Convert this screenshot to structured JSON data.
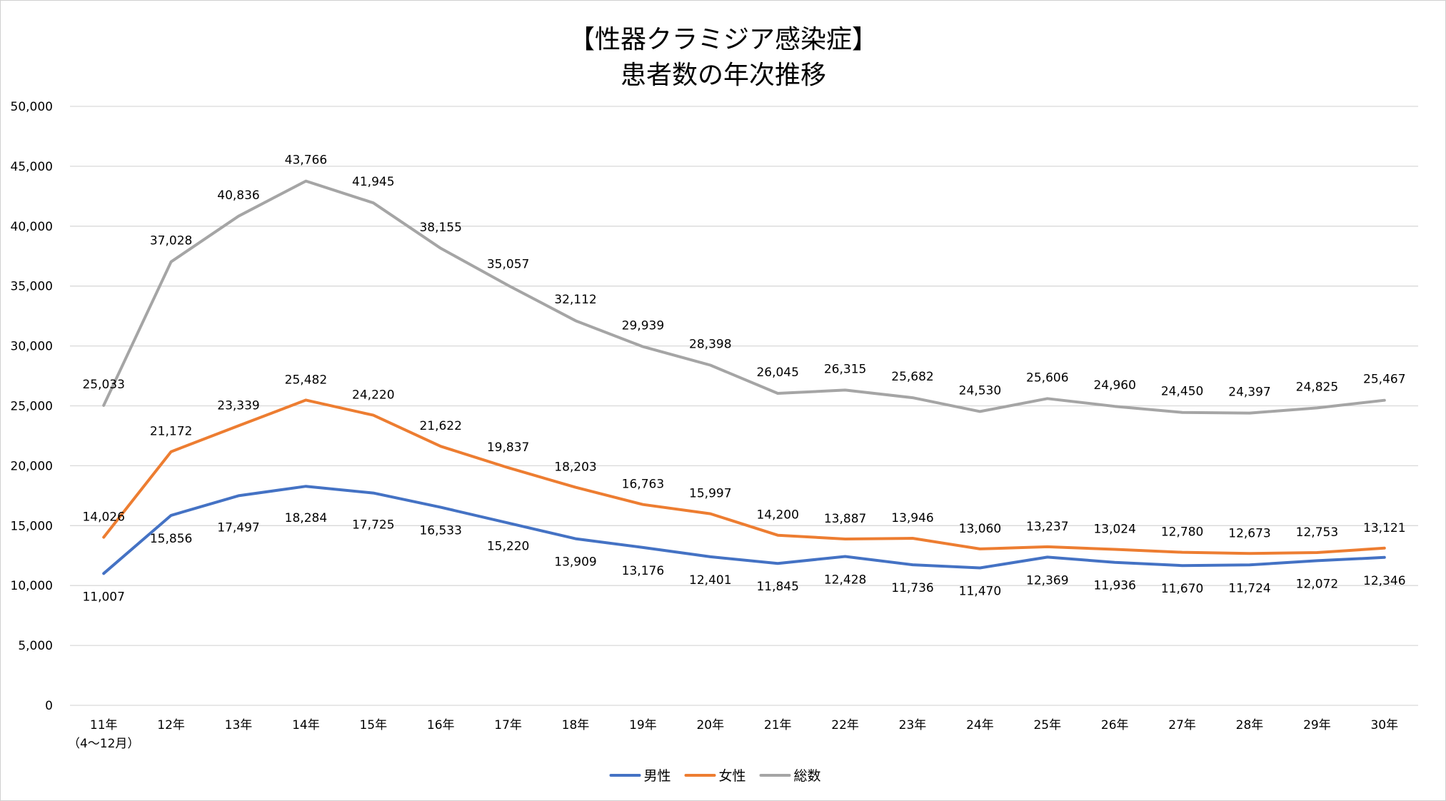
{
  "colors": {
    "male": "#4472c4",
    "female": "#ed7d31",
    "total": "#a5a5a5",
    "grid": "#d9d9d9"
  },
  "chart_data": {
    "type": "line",
    "title": "【性器クラミジア感染症】",
    "subtitle": "患者数の年次推移",
    "categories": [
      [
        "11年",
        "（4～12月）"
      ],
      [
        "12年"
      ],
      [
        "13年"
      ],
      [
        "14年"
      ],
      [
        "15年"
      ],
      [
        "16年"
      ],
      [
        "17年"
      ],
      [
        "18年"
      ],
      [
        "19年"
      ],
      [
        "20年"
      ],
      [
        "21年"
      ],
      [
        "22年"
      ],
      [
        "23年"
      ],
      [
        "24年"
      ],
      [
        "25年"
      ],
      [
        "26年"
      ],
      [
        "27年"
      ],
      [
        "28年"
      ],
      [
        "29年"
      ],
      [
        "30年"
      ]
    ],
    "ylim": [
      0,
      50000
    ],
    "yticks": [
      0,
      5000,
      10000,
      15000,
      20000,
      25000,
      30000,
      35000,
      40000,
      45000,
      50000
    ],
    "ytick_labels": [
      "0",
      "5,000",
      "10,000",
      "15,000",
      "20,000",
      "25,000",
      "30,000",
      "35,000",
      "40,000",
      "45,000",
      "50,000"
    ],
    "grid": true,
    "legend_position": "bottom",
    "series": [
      {
        "key": "male",
        "name": "男性",
        "values": [
          11007,
          15856,
          17497,
          18284,
          17725,
          16533,
          15220,
          13909,
          13176,
          12401,
          11845,
          12428,
          11736,
          11470,
          12369,
          11936,
          11670,
          11724,
          12072,
          12346
        ],
        "labels": [
          "11,007",
          "15,856",
          "17,497",
          "18,284",
          "17,725",
          "16,533",
          "15,220",
          "13,909",
          "13,176",
          "12,401",
          "11,845",
          "12,428",
          "11,736",
          "11,470",
          "12,369",
          "11,936",
          "11,670",
          "11,724",
          "12,072",
          "12,346"
        ]
      },
      {
        "key": "female",
        "name": "女性",
        "values": [
          14026,
          21172,
          23339,
          25482,
          24220,
          21622,
          19837,
          18203,
          16763,
          15997,
          14200,
          13887,
          13946,
          13060,
          13237,
          13024,
          12780,
          12673,
          12753,
          13121
        ],
        "labels": [
          "14,026",
          "21,172",
          "23,339",
          "25,482",
          "24,220",
          "21,622",
          "19,837",
          "18,203",
          "16,763",
          "15,997",
          "14,200",
          "13,887",
          "13,946",
          "13,060",
          "13,237",
          "13,024",
          "12,780",
          "12,673",
          "12,753",
          "13,121"
        ]
      },
      {
        "key": "total",
        "name": "総数",
        "values": [
          25033,
          37028,
          40836,
          43766,
          41945,
          38155,
          35057,
          32112,
          29939,
          28398,
          26045,
          26315,
          25682,
          24530,
          25606,
          24960,
          24450,
          24397,
          24825,
          25467
        ],
        "labels": [
          "25,033",
          "37,028",
          "40,836",
          "43,766",
          "41,945",
          "38,155",
          "35,057",
          "32,112",
          "29,939",
          "28,398",
          "26,045",
          "26,315",
          "25,682",
          "24,530",
          "25,606",
          "24,960",
          "24,450",
          "24,397",
          "24,825",
          "25,467"
        ]
      }
    ]
  }
}
